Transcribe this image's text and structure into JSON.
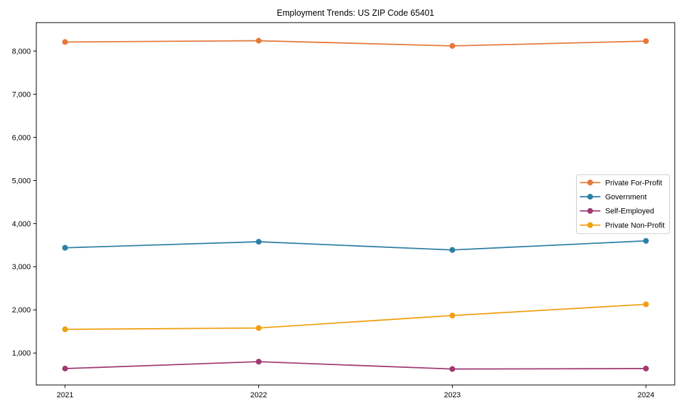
{
  "page": {
    "background_color": "#ffffff",
    "text_color": "#000000"
  },
  "chart_data": {
    "type": "line",
    "title": "Employment Trends: US ZIP Code 65401",
    "xlabel": "",
    "ylabel": "",
    "categories": [
      "2021",
      "2022",
      "2023",
      "2024"
    ],
    "series": [
      {
        "name": "Private For-Profit",
        "color": "#E5793B",
        "values": [
          8210,
          8240,
          8120,
          8230
        ]
      },
      {
        "name": "Government",
        "color": "#2E7FA6",
        "values": [
          3440,
          3580,
          3390,
          3600
        ]
      },
      {
        "name": "Self-Employed",
        "color": "#A03A72",
        "values": [
          640,
          800,
          630,
          640
        ]
      },
      {
        "name": "Private Non-Profit",
        "color": "#F0A010",
        "values": [
          1550,
          1580,
          1870,
          2130
        ]
      }
    ],
    "ylim": [
      260,
      8660
    ],
    "yticks": [
      1000,
      2000,
      3000,
      4000,
      5000,
      6000,
      7000,
      8000
    ],
    "ytick_labels": [
      "1,000",
      "2,000",
      "3,000",
      "4,000",
      "5,000",
      "6,000",
      "7,000",
      "8,000"
    ],
    "grid": false,
    "marker": "circle",
    "legend_position": "center-right",
    "axis_color": "#000000",
    "legend_border_color": "#cccccc",
    "legend_background": "#ffffff"
  }
}
